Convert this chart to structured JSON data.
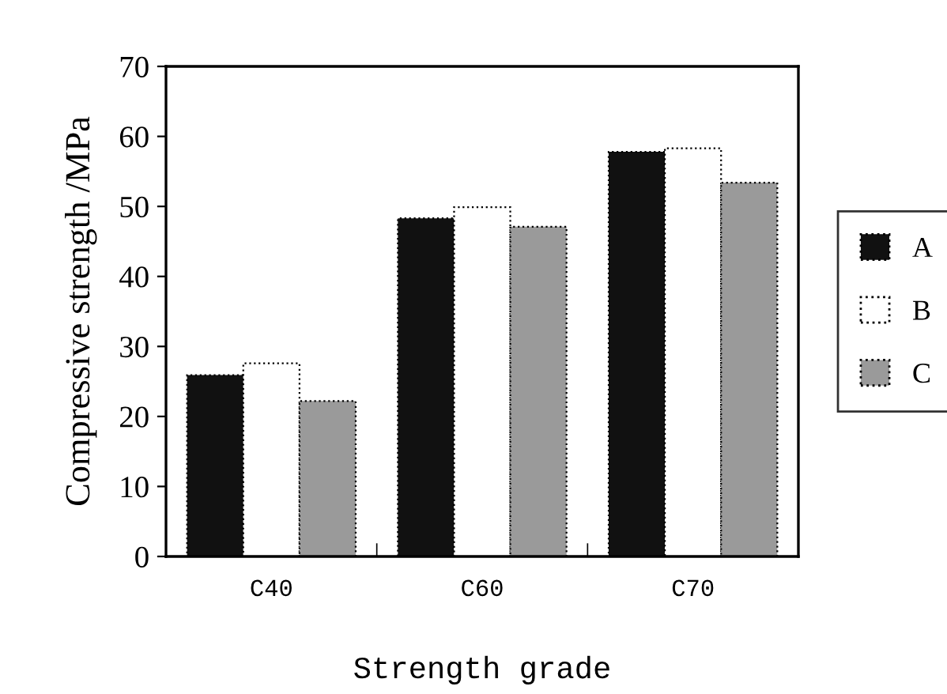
{
  "chart_data": {
    "type": "bar",
    "xlabel": "Strength grade",
    "ylabel": "Compressive strength /MPa",
    "categories": [
      "C40",
      "C60",
      "C70"
    ],
    "series": [
      {
        "name": "A",
        "color": "#111111",
        "values": [
          25.9,
          48.3,
          57.8
        ]
      },
      {
        "name": "B",
        "color": "#ffffff",
        "values": [
          27.6,
          49.9,
          58.3
        ]
      },
      {
        "name": "C",
        "color": "#9a9a9a",
        "values": [
          22.2,
          47.1,
          53.4
        ]
      }
    ],
    "ylim": [
      0,
      70
    ],
    "yticks": [
      0,
      10,
      20,
      30,
      40,
      50,
      60,
      70
    ],
    "grid": false,
    "legend": "right"
  }
}
